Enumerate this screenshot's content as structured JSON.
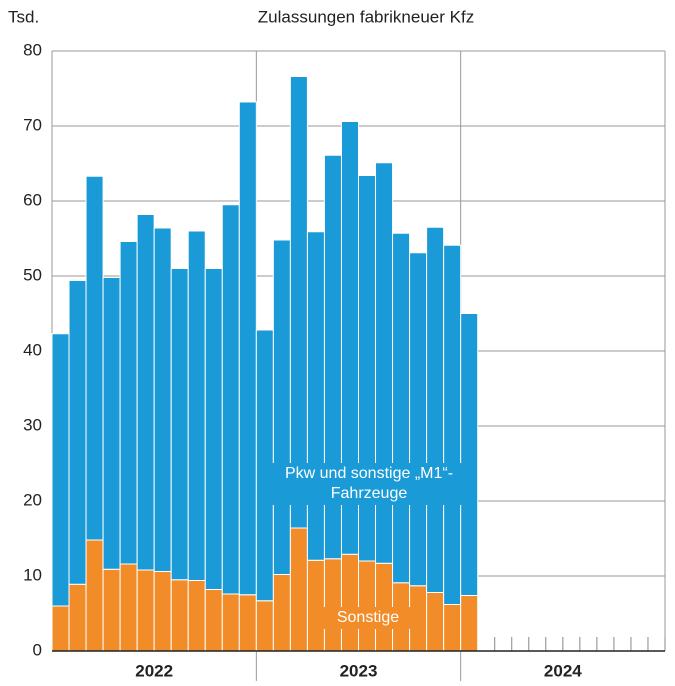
{
  "chart_data": {
    "type": "stacked_bar",
    "title": "Zulassungen fabrikneuer Kfz",
    "y_unit": "Tsd.",
    "categories": [
      null,
      null,
      null,
      null,
      null,
      null,
      null,
      null,
      null,
      null,
      null,
      null,
      null,
      null,
      null,
      null,
      null,
      null,
      null,
      null,
      null,
      null,
      null,
      null,
      null,
      null,
      null,
      null,
      null,
      null,
      null,
      null,
      null,
      null,
      null,
      null
    ],
    "year_labels": [
      "2022",
      "2023",
      "2024"
    ],
    "series": [
      {
        "name": "Sonstige",
        "color": "#f28c28",
        "values": [
          6.0,
          8.9,
          14.8,
          10.9,
          11.6,
          10.8,
          10.6,
          9.5,
          9.4,
          8.2,
          7.6,
          7.5,
          6.7,
          10.2,
          16.4,
          12.1,
          12.3,
          12.9,
          12.0,
          11.7,
          9.1,
          8.7,
          7.8,
          6.2,
          7.4,
          null,
          null,
          null,
          null,
          null,
          null,
          null,
          null,
          null,
          null,
          null
        ]
      },
      {
        "name": "Pkw und sonstige „M1“-Fahrzeuge",
        "color": "#1a9ad6",
        "values": [
          36.3,
          40.5,
          48.5,
          38.9,
          43.0,
          47.4,
          45.8,
          41.5,
          46.6,
          42.8,
          51.9,
          65.7,
          36.1,
          44.6,
          60.2,
          43.8,
          53.8,
          57.7,
          51.4,
          53.4,
          46.6,
          44.4,
          48.7,
          47.9,
          37.6,
          null,
          null,
          null,
          null,
          null,
          null,
          null,
          null,
          null,
          null,
          null
        ]
      }
    ],
    "ylim": [
      0,
      80
    ],
    "yticks": [
      0,
      10,
      20,
      30,
      40,
      50,
      60,
      70,
      80
    ],
    "grid": true
  }
}
